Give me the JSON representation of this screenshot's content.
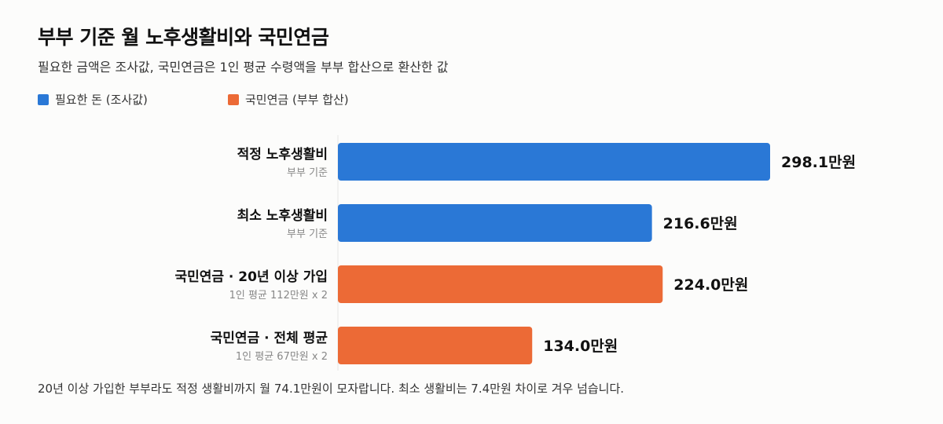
{
  "title": "부부 기준 월 노후생활비와 국민연금",
  "subtitle": "필요한 금액은 조사값, 국민연금은 1인 평균 수령액을 부부 합산으로 환산한 값",
  "legend": [
    {
      "label": "필요한 돈 (조사값)",
      "color": "#2a78d6"
    },
    {
      "label": "국민연금 (부부 합산)",
      "color": "#ec6a36"
    }
  ],
  "footnote": "20년 이상 가입한 부부라도 적정 생활비까지 월 74.1만원이 모자랍니다. 최소 생활비는 7.4만원 차이로 겨우 넘습니다.",
  "chart_data": {
    "type": "bar",
    "orientation": "horizontal",
    "unit": "만원",
    "categories": [
      {
        "label": "적정 노후생활비",
        "sublabel": "부부 기준",
        "value": 298.1,
        "value_label": "298.1만원",
        "group": 0
      },
      {
        "label": "최소 노후생활비",
        "sublabel": "부부 기준",
        "value": 216.6,
        "value_label": "216.6만원",
        "group": 0
      },
      {
        "label": "국민연금 · 20년 이상 가입",
        "sublabel": "1인 평균 112만원 x 2",
        "value": 224.0,
        "value_label": "224.0만원",
        "group": 1
      },
      {
        "label": "국민연금 · 전체 평균",
        "sublabel": "1인 평균 67만원 x 2",
        "value": 134.0,
        "value_label": "134.0만원",
        "group": 1
      }
    ],
    "xlim": [
      0,
      298.1
    ],
    "grid": false,
    "legend_position": "top-left"
  }
}
